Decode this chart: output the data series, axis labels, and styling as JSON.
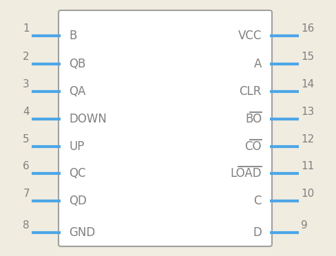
{
  "bg_color": "#f0ece0",
  "box_color": "#a0a0a0",
  "pin_line_color": "#4da6e8",
  "text_color": "#808080",
  "left_pins": [
    {
      "num": "1",
      "label": "B"
    },
    {
      "num": "2",
      "label": "QB"
    },
    {
      "num": "3",
      "label": "QA"
    },
    {
      "num": "4",
      "label": "DOWN"
    },
    {
      "num": "5",
      "label": "UP"
    },
    {
      "num": "6",
      "label": "QC"
    },
    {
      "num": "7",
      "label": "QD"
    },
    {
      "num": "8",
      "label": "GND"
    }
  ],
  "right_pins": [
    {
      "num": "16",
      "label": "VCC",
      "overline": false
    },
    {
      "num": "15",
      "label": "A",
      "overline": false
    },
    {
      "num": "14",
      "label": "CLR",
      "overline": false
    },
    {
      "num": "13",
      "label": "BO",
      "overline": true
    },
    {
      "num": "12",
      "label": "CO",
      "overline": true
    },
    {
      "num": "11",
      "label": "LOAD",
      "overline": true
    },
    {
      "num": "10",
      "label": "C",
      "overline": false
    },
    {
      "num": "9",
      "label": "D",
      "overline": false
    }
  ],
  "fig_w": 4.88,
  "fig_h": 3.72,
  "dpi": 100
}
